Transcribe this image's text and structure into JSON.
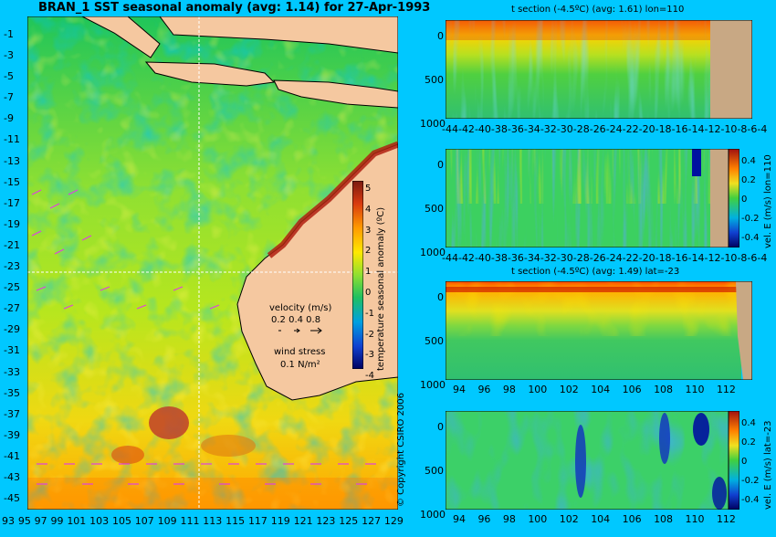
{
  "map": {
    "title": "BRAN_1 SST seasonal anomaly (avg: 1.14) for 27-Apr-1993",
    "lat_ticks": [
      "-1",
      "-3",
      "-5",
      "-7",
      "-9",
      "-11",
      "-13",
      "-15",
      "-17",
      "-19",
      "-21",
      "-23",
      "-25",
      "-27",
      "-29",
      "-31",
      "-33",
      "-35",
      "-37",
      "-39",
      "-41",
      "-43",
      "-45"
    ],
    "lon_ticks": [
      "93",
      "95",
      "97",
      "99",
      "101",
      "103",
      "105",
      "107",
      "109",
      "111",
      "113",
      "115",
      "117",
      "119",
      "121",
      "123",
      "125",
      "127",
      "129"
    ],
    "colorbar_label": "temperature seasonal anomaly (ºC)",
    "colorbar_ticks": [
      "5",
      "4",
      "3",
      "2",
      "1",
      "0",
      "-1",
      "-2",
      "-3",
      "-4"
    ],
    "legend_velocity": "velocity (m/s)",
    "legend_velocity_values": "0.2 0.4 0.8",
    "legend_wind": "wind stress",
    "legend_wind_value": "0.1 N/m²",
    "copyright": "© Copyright CSIRO 2006",
    "land_color": "#f5c8a0"
  },
  "panels": [
    {
      "title": "t section (-4.5ºC) (avg: 1.61) lon=110",
      "y_ticks": [
        "0",
        "500",
        "1000"
      ],
      "x_ticks": [
        "-44",
        "-42",
        "-40",
        "-38",
        "-36",
        "-34",
        "-32",
        "-30",
        "-28",
        "-26",
        "-24",
        "-22",
        "-20",
        "-18",
        "-16",
        "-14",
        "-12",
        "-10",
        "-8",
        "-6",
        "-4"
      ],
      "side_label": "",
      "colorbar_ticks": []
    },
    {
      "title": "",
      "y_ticks": [
        "0",
        "500",
        "1000"
      ],
      "x_ticks": [
        "-44",
        "-42",
        "-40",
        "-38",
        "-36",
        "-34",
        "-32",
        "-30",
        "-28",
        "-26",
        "-24",
        "-22",
        "-20",
        "-18",
        "-16",
        "-14",
        "-12",
        "-10",
        "-8",
        "-6",
        "-4"
      ],
      "side_label": "vel. E (m/s) lon=110",
      "colorbar_ticks": [
        "0.4",
        "0.2",
        "0",
        "-0.2",
        "-0.4"
      ]
    },
    {
      "title": "t section (-4.5ºC) (avg: 1.49) lat=-23",
      "y_ticks": [
        "0",
        "500",
        "1000"
      ],
      "x_ticks": [
        "94",
        "96",
        "98",
        "100",
        "102",
        "104",
        "106",
        "108",
        "110",
        "112"
      ],
      "side_label": "",
      "colorbar_ticks": []
    },
    {
      "title": "",
      "y_ticks": [
        "0",
        "500",
        "1000"
      ],
      "x_ticks": [
        "94",
        "96",
        "98",
        "100",
        "102",
        "104",
        "106",
        "108",
        "110",
        "112"
      ],
      "side_label": "vel. E (m/s) lat=-23",
      "colorbar_ticks": [
        "0.4",
        "0.2",
        "0",
        "-0.2",
        "-0.4"
      ]
    }
  ]
}
